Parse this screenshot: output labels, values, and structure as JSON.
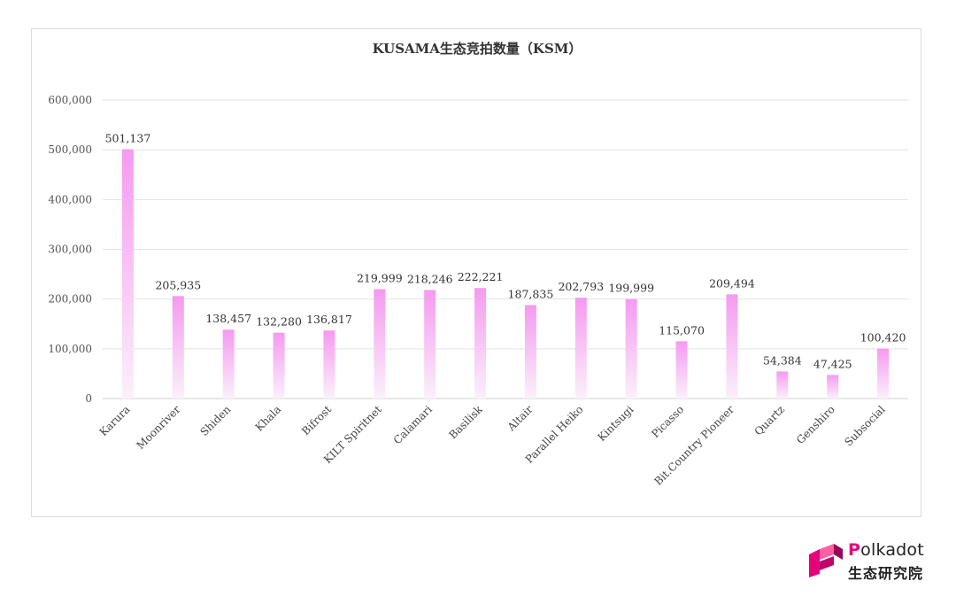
{
  "chart_data": {
    "type": "bar",
    "title": "KUSAMA生态竞拍数量（KSM）",
    "categories": [
      "Karura",
      "Moonriver",
      "Shiden",
      "Khala",
      "Bifrost",
      "KILT Spiritnet",
      "Calamari",
      "Basilisk",
      "Altair",
      "Parallel Heiko",
      "Kintsugi",
      "Picasso",
      "Bit.Country Pioneer",
      "Quartz",
      "Genshiro",
      "Subsocial"
    ],
    "values": [
      501137,
      205935,
      138457,
      132280,
      136817,
      219999,
      218246,
      222221,
      187835,
      202793,
      199999,
      115070,
      209494,
      54384,
      47425,
      100420
    ],
    "value_labels": [
      "501,137",
      "205,935",
      "138,457",
      "132,280",
      "136,817",
      "219,999",
      "218,246",
      "222,221",
      "187,835",
      "202,793",
      "199,999",
      "115,070",
      "209,494",
      "54,384",
      "47,425",
      "100,420"
    ],
    "yticks": [
      0,
      100000,
      200000,
      300000,
      400000,
      500000,
      600000
    ],
    "ytick_labels": [
      "0",
      "100,000",
      "200,000",
      "300,000",
      "400,000",
      "500,000",
      "600,000"
    ],
    "ylim": [
      0,
      600000
    ],
    "grid": true,
    "bar_color_top": "#f59af0",
    "bar_color_bottom": "#fbf0fb"
  },
  "logo": {
    "name_first": "P",
    "name_rest": "olkadot",
    "subtitle": "生态研究院",
    "color": "#e6007a"
  }
}
